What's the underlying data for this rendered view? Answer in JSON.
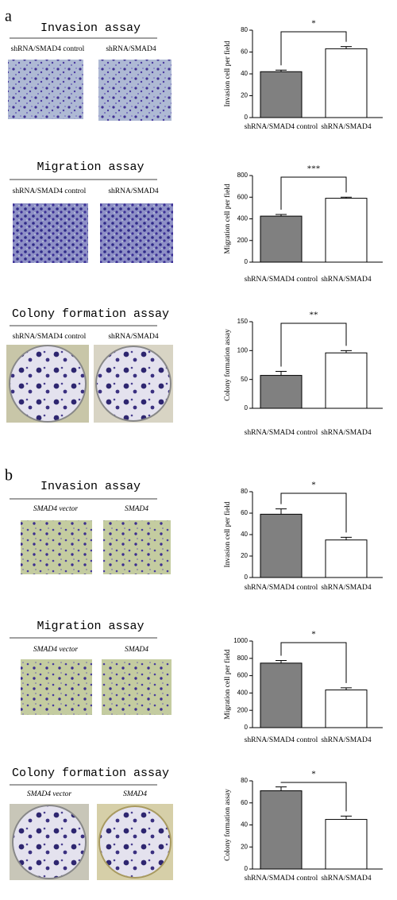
{
  "panels": [
    {
      "label": "a",
      "assays": [
        {
          "title": "Invasion assay",
          "image_labels": [
            "shRNA/SMAD4 control",
            "shRNA/SMAD4"
          ]
        },
        {
          "title": "Migration assay",
          "image_labels": [
            "shRNA/SMAD4 control",
            "shRNA/SMAD4"
          ]
        },
        {
          "title": "Colony formation assay",
          "image_labels": [
            "shRNA/SMAD4 control",
            "shRNA/SMAD4"
          ]
        }
      ]
    },
    {
      "label": "b",
      "assays": [
        {
          "title": "Invasion assay",
          "image_labels": [
            "SMAD4 vector",
            "SMAD4"
          ]
        },
        {
          "title": "Migration assay",
          "image_labels": [
            "SMAD4 vector",
            "SMAD4"
          ]
        },
        {
          "title": "Colony formation assay",
          "image_labels": [
            "SMAD4 vector",
            "SMAD4"
          ]
        }
      ]
    }
  ],
  "chart_data": [
    {
      "type": "bar",
      "ylabel": "Invasion cell per field",
      "categories": [
        "shRNA/SMAD4 control",
        "shRNA/SMAD4"
      ],
      "values": [
        42,
        63
      ],
      "errors": [
        1.5,
        2
      ],
      "colors": [
        "#808080",
        "#ffffff"
      ],
      "ylim": [
        0,
        80
      ],
      "yticks": [
        0,
        20,
        40,
        60,
        80
      ],
      "significance": "*"
    },
    {
      "type": "bar",
      "ylabel": "Migration cell per field",
      "categories": [
        "shRNA/SMAD4 control",
        "shRNA/SMAD4"
      ],
      "values": [
        425,
        590
      ],
      "errors": [
        15,
        10
      ],
      "colors": [
        "#808080",
        "#ffffff"
      ],
      "ylim": [
        0,
        800
      ],
      "yticks": [
        0,
        200,
        400,
        600,
        800
      ],
      "significance": "***"
    },
    {
      "type": "bar",
      "ylabel": "Colony formation assay",
      "categories": [
        "shRNA/SMAD4 control",
        "shRNA/SMAD4"
      ],
      "values": [
        57,
        96
      ],
      "errors": [
        7,
        4
      ],
      "colors": [
        "#808080",
        "#ffffff"
      ],
      "ylim": [
        0,
        150
      ],
      "yticks": [
        0,
        50,
        100,
        150
      ],
      "significance": "**"
    },
    {
      "type": "bar",
      "ylabel": "Invasion cell per field",
      "categories": [
        "shRNA/SMAD4 control",
        "shRNA/SMAD4"
      ],
      "values": [
        59,
        35
      ],
      "errors": [
        5,
        2.5
      ],
      "colors": [
        "#808080",
        "#ffffff"
      ],
      "ylim": [
        0,
        80
      ],
      "yticks": [
        0,
        20,
        40,
        60,
        80
      ],
      "significance": "*"
    },
    {
      "type": "bar",
      "ylabel": "Migration cell per field",
      "categories": [
        "shRNA/SMAD4 control",
        "shRNA/SMAD4"
      ],
      "values": [
        745,
        435
      ],
      "errors": [
        30,
        25
      ],
      "colors": [
        "#808080",
        "#ffffff"
      ],
      "ylim": [
        0,
        1000
      ],
      "yticks": [
        0,
        200,
        400,
        600,
        800,
        1000
      ],
      "significance": "*"
    },
    {
      "type": "bar",
      "ylabel": "Colony formation assay",
      "categories": [
        "shRNA/SMAD4 control",
        "shRNA/SMAD4"
      ],
      "values": [
        71,
        45
      ],
      "errors": [
        3.5,
        3
      ],
      "colors": [
        "#808080",
        "#ffffff"
      ],
      "ylim": [
        0,
        80
      ],
      "yticks": [
        0,
        20,
        40,
        60,
        80
      ],
      "significance": "*"
    }
  ]
}
